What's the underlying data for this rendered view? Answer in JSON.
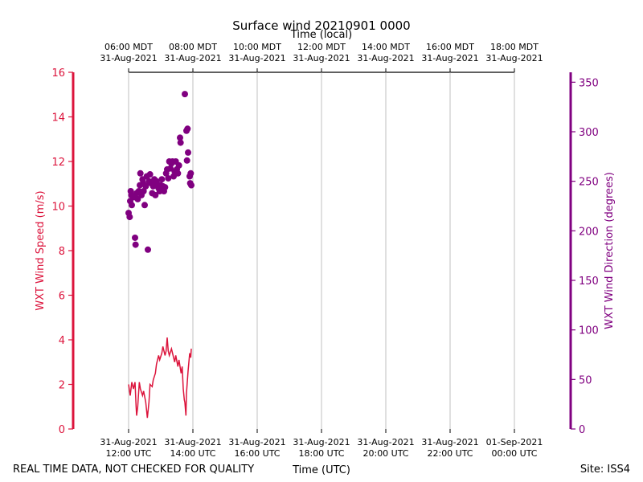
{
  "chart_data": {
    "type": "line_scatter",
    "title": "Surface wind 20210901 0000",
    "top_axis_label": "Time (local)",
    "x_axis_label": "Time (UTC)",
    "footer_left": "REAL TIME DATA, NOT CHECKED FOR QUALITY",
    "footer_right": "Site: ISS4",
    "y_axis_label": "WXT Wind Speed (m/s)",
    "y2_axis_label": "WXT Wind Direction (degrees)",
    "xlim": [
      "2021-08-31 12:00",
      "2021-09-01 00:00"
    ],
    "xticks": [
      {
        "value": "2021-08-31 12:00",
        "label": "31-Aug-2021\n12:00 UTC"
      },
      {
        "value": "2021-08-31 14:00",
        "label": "31-Aug-2021\n14:00 UTC"
      },
      {
        "value": "2021-08-31 16:00",
        "label": "31-Aug-2021\n16:00 UTC"
      },
      {
        "value": "2021-08-31 18:00",
        "label": "31-Aug-2021\n18:00 UTC"
      },
      {
        "value": "2021-08-31 20:00",
        "label": "31-Aug-2021\n20:00 UTC"
      },
      {
        "value": "2021-08-31 22:00",
        "label": "31-Aug-2021\n22:00 UTC"
      },
      {
        "value": "2021-09-01 00:00",
        "label": "01-Sep-2021\n00:00 UTC"
      }
    ],
    "top_xticks": [
      {
        "value": "2021-08-31 12:00",
        "label": "06:00 MDT\n31-Aug-2021"
      },
      {
        "value": "2021-08-31 14:00",
        "label": "08:00 MDT\n31-Aug-2021"
      },
      {
        "value": "2021-08-31 16:00",
        "label": "10:00 MDT\n31-Aug-2021"
      },
      {
        "value": "2021-08-31 18:00",
        "label": "12:00 MDT\n31-Aug-2021"
      },
      {
        "value": "2021-08-31 20:00",
        "label": "14:00 MDT\n31-Aug-2021"
      },
      {
        "value": "2021-08-31 22:00",
        "label": "16:00 MDT\n31-Aug-2021"
      },
      {
        "value": "2021-09-01 00:00",
        "label": "18:00 MDT\n31-Aug-2021"
      }
    ],
    "ylim": [
      0,
      16
    ],
    "yticks": [
      0,
      2,
      4,
      6,
      8,
      10,
      12,
      14,
      16
    ],
    "y2lim": [
      0,
      360
    ],
    "y2ticks": [
      0,
      50,
      100,
      150,
      200,
      250,
      300,
      350
    ],
    "grid": true,
    "series": [
      {
        "name": "WXT Wind Speed",
        "type": "line",
        "color": "#dc143c",
        "x": [
          "2021-08-31 12:00",
          "2021-08-31 12:03",
          "2021-08-31 12:06",
          "2021-08-31 12:09",
          "2021-08-31 12:12",
          "2021-08-31 12:14",
          "2021-08-31 12:15",
          "2021-08-31 12:17",
          "2021-08-31 12:20",
          "2021-08-31 12:22",
          "2021-08-31 12:26",
          "2021-08-31 12:28",
          "2021-08-31 12:32",
          "2021-08-31 12:35",
          "2021-08-31 12:38",
          "2021-08-31 12:40",
          "2021-08-31 12:44",
          "2021-08-31 12:46",
          "2021-08-31 12:50",
          "2021-08-31 12:52",
          "2021-08-31 12:56",
          "2021-08-31 12:58",
          "2021-08-31 13:02",
          "2021-08-31 13:04",
          "2021-08-31 13:08",
          "2021-08-31 13:10",
          "2021-08-31 13:12",
          "2021-08-31 13:14",
          "2021-08-31 13:16",
          "2021-08-31 13:20",
          "2021-08-31 13:22",
          "2021-08-31 13:26",
          "2021-08-31 13:28",
          "2021-08-31 13:32",
          "2021-08-31 13:34",
          "2021-08-31 13:38",
          "2021-08-31 13:40",
          "2021-08-31 13:42",
          "2021-08-31 13:44",
          "2021-08-31 13:45",
          "2021-08-31 13:47",
          "2021-08-31 13:48",
          "2021-08-31 13:51",
          "2021-08-31 13:54",
          "2021-08-31 13:56",
          "2021-08-31 13:57"
        ],
        "values": [
          2.0,
          1.5,
          2.1,
          1.8,
          2.1,
          1.0,
          0.6,
          1.0,
          2.1,
          1.8,
          1.5,
          1.7,
          1.2,
          0.5,
          1.2,
          2.0,
          1.9,
          2.2,
          2.5,
          2.9,
          3.3,
          3.1,
          3.4,
          3.7,
          3.3,
          3.5,
          4.1,
          3.5,
          3.3,
          3.6,
          3.4,
          3.0,
          3.3,
          2.8,
          3.1,
          2.5,
          2.8,
          1.8,
          1.3,
          1.2,
          0.6,
          1.6,
          2.6,
          3.4,
          3.2,
          3.6
        ]
      },
      {
        "name": "WXT Wind Direction",
        "type": "scatter",
        "axis": "y2",
        "color": "#800080",
        "x": [
          "2021-08-31 12:02",
          "2021-08-31 12:00",
          "2021-08-31 12:03",
          "2021-08-31 12:04",
          "2021-08-31 12:05",
          "2021-08-31 12:06",
          "2021-08-31 12:13",
          "2021-08-31 12:12",
          "2021-08-31 12:36",
          "2021-08-31 12:10",
          "2021-08-31 12:15",
          "2021-08-31 12:17",
          "2021-08-31 12:19",
          "2021-08-31 12:21",
          "2021-08-31 12:22",
          "2021-08-31 12:24",
          "2021-08-31 12:26",
          "2021-08-31 12:27",
          "2021-08-31 12:28",
          "2021-08-31 12:30",
          "2021-08-31 12:32",
          "2021-08-31 12:34",
          "2021-08-31 12:38",
          "2021-08-31 12:40",
          "2021-08-31 12:42",
          "2021-08-31 12:44",
          "2021-08-31 12:46",
          "2021-08-31 12:48",
          "2021-08-31 12:50",
          "2021-08-31 12:52",
          "2021-08-31 12:54",
          "2021-08-31 12:56",
          "2021-08-31 12:58",
          "2021-08-31 13:00",
          "2021-08-31 13:02",
          "2021-08-31 13:04",
          "2021-08-31 13:06",
          "2021-08-31 13:08",
          "2021-08-31 13:10",
          "2021-08-31 13:12",
          "2021-08-31 13:14",
          "2021-08-31 13:16",
          "2021-08-31 13:18",
          "2021-08-31 13:20",
          "2021-08-31 13:22",
          "2021-08-31 13:24",
          "2021-08-31 13:26",
          "2021-08-31 13:28",
          "2021-08-31 13:30",
          "2021-08-31 13:32",
          "2021-08-31 13:34",
          "2021-08-31 13:36",
          "2021-08-31 13:37",
          "2021-08-31 13:45",
          "2021-08-31 13:48",
          "2021-08-31 13:50",
          "2021-08-31 13:51",
          "2021-08-31 13:49",
          "2021-08-31 13:54",
          "2021-08-31 13:55",
          "2021-08-31 13:57",
          "2021-08-31 13:56"
        ],
        "values": [
          214,
          218,
          230,
          240,
          236,
          226,
          186,
          193,
          181,
          234,
          238,
          232,
          240,
          246,
          258,
          236,
          252,
          248,
          240,
          226,
          245,
          255,
          250,
          257,
          248,
          238,
          245,
          252,
          236,
          250,
          247,
          243,
          240,
          246,
          252,
          245,
          240,
          244,
          258,
          262,
          253,
          270,
          263,
          268,
          270,
          255,
          260,
          270,
          262,
          258,
          266,
          294,
          289,
          338,
          301,
          303,
          279,
          271,
          255,
          248,
          246,
          258
        ]
      }
    ]
  }
}
